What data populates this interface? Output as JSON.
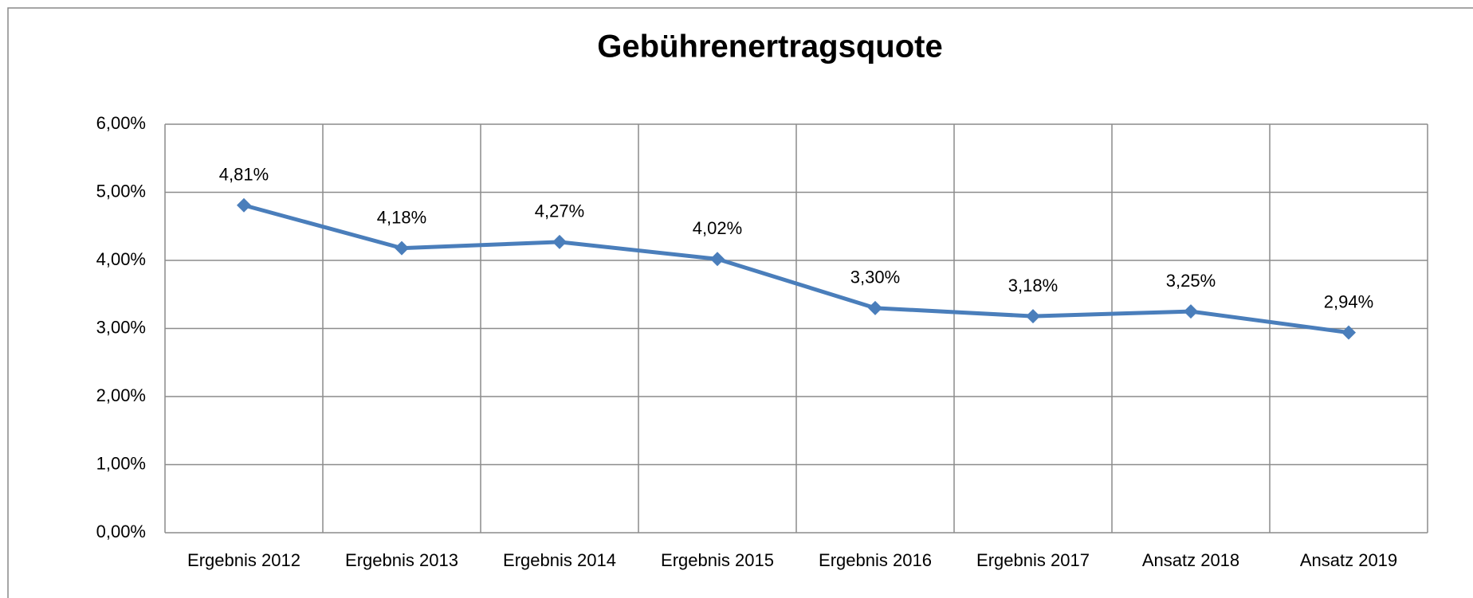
{
  "chart_data": {
    "type": "line",
    "title": "Gebührenertragsquote",
    "categories": [
      "Ergebnis 2012",
      "Ergebnis 2013",
      "Ergebnis 2014",
      "Ergebnis 2015",
      "Ergebnis 2016",
      "Ergebnis 2017",
      "Ansatz 2018",
      "Ansatz 2019"
    ],
    "series": [
      {
        "name": "Gebührenertragsquote",
        "color": "#4a7ebb",
        "values": [
          4.81,
          4.18,
          4.27,
          4.02,
          3.3,
          3.18,
          3.25,
          2.94
        ],
        "value_labels": [
          "4,81%",
          "4,18%",
          "4,27%",
          "4,02%",
          "3,30%",
          "3,18%",
          "3,25%",
          "2,94%"
        ]
      }
    ],
    "ylim": [
      0,
      6
    ],
    "yticks": [
      {
        "value": 0,
        "label": "0,00%"
      },
      {
        "value": 1,
        "label": "1,00%"
      },
      {
        "value": 2,
        "label": "2,00%"
      },
      {
        "value": 3,
        "label": "3,00%"
      },
      {
        "value": 4,
        "label": "4,00%"
      },
      {
        "value": 5,
        "label": "5,00%"
      },
      {
        "value": 6,
        "label": "6,00%"
      }
    ],
    "grid": true
  }
}
